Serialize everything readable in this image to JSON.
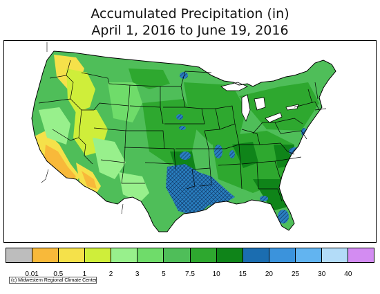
{
  "title": {
    "line1": "Accumulated Precipitation (in)",
    "line2": "April 1, 2016 to June 19, 2016"
  },
  "credit": "(c) Midwestern Regional Climate Center",
  "legend": {
    "colors": [
      "#bdbdbd",
      "#f8b93a",
      "#f5e14a",
      "#cfee3a",
      "#98f08c",
      "#6fdc6a",
      "#4fbe59",
      "#2ea82f",
      "#0f8419",
      "#1b6db0",
      "#3b93dc",
      "#62b4f0",
      "#b3dcf8",
      "#d38cf2"
    ],
    "labels": [
      "0.01",
      "0.5",
      "1",
      "2",
      "3",
      "5",
      "7.5",
      "10",
      "15",
      "20",
      "25",
      "30",
      "40"
    ]
  },
  "map": {
    "region": "Contiguous United States",
    "states": [
      "WA",
      "OR",
      "CA",
      "NV",
      "ID",
      "MT",
      "WY",
      "UT",
      "AZ",
      "CO",
      "NM",
      "ND",
      "SD",
      "NE",
      "KS",
      "OK",
      "TX",
      "MN",
      "IA",
      "MO",
      "AR",
      "LA",
      "WI",
      "IL",
      "MI",
      "IN",
      "OH",
      "KY",
      "TN",
      "MS",
      "AL",
      "GA",
      "FL",
      "SC",
      "NC",
      "VA",
      "WV",
      "PA",
      "NY",
      "VT",
      "NH",
      "ME",
      "MA",
      "CT",
      "RI",
      "NJ",
      "DE",
      "MD"
    ]
  }
}
